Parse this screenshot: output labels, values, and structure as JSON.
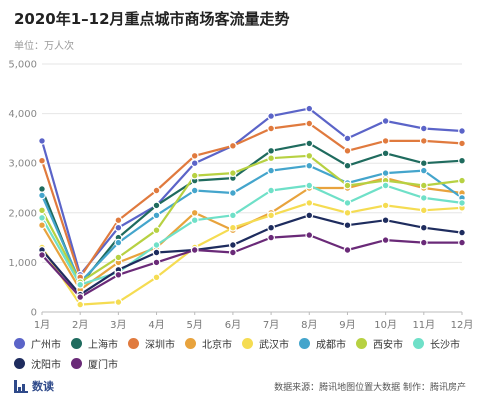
{
  "title": "2020年1–12月重点城市商场客流量走势",
  "unit_label": "单位：万人次",
  "footer": {
    "logo_text": "数读",
    "source": "数据来源：腾讯地图位置大数据  制作：腾讯房产"
  },
  "chart_data": {
    "type": "line",
    "categories": [
      "1月",
      "2月",
      "3月",
      "4月",
      "5月",
      "6月",
      "7月",
      "8月",
      "9月",
      "10月",
      "11月",
      "12月"
    ],
    "ylim": [
      0,
      5000
    ],
    "yticks": [
      "0",
      "1,000",
      "2,000",
      "3,000",
      "4,000",
      "5,000"
    ],
    "grid": true,
    "legend_placement": "bottom",
    "series": [
      {
        "name": "广州市",
        "color": "#5b64c8",
        "values": [
          3450,
          750,
          1700,
          2150,
          3000,
          3350,
          3950,
          4100,
          3500,
          3850,
          3700,
          3650
        ]
      },
      {
        "name": "上海市",
        "color": "#1f6b5e",
        "values": [
          2480,
          550,
          1500,
          2150,
          2650,
          2700,
          3250,
          3400,
          2950,
          3200,
          3000,
          3050
        ]
      },
      {
        "name": "深圳市",
        "color": "#e07a3e",
        "values": [
          3050,
          700,
          1850,
          2450,
          3150,
          3350,
          3700,
          3800,
          3250,
          3450,
          3450,
          3400
        ]
      },
      {
        "name": "北京市",
        "color": "#e8a33d",
        "values": [
          1750,
          450,
          1000,
          1300,
          2000,
          1650,
          2000,
          2500,
          2500,
          2700,
          2500,
          2400
        ]
      },
      {
        "name": "武汉市",
        "color": "#f5dc52",
        "values": [
          1300,
          150,
          200,
          700,
          1300,
          1700,
          1950,
          2200,
          2000,
          2150,
          2050,
          2100
        ]
      },
      {
        "name": "成都市",
        "color": "#44a5cc",
        "values": [
          2350,
          600,
          1400,
          1950,
          2450,
          2400,
          2850,
          2950,
          2600,
          2800,
          2850,
          2300
        ]
      },
      {
        "name": "西安市",
        "color": "#b7d142",
        "values": [
          2050,
          600,
          1100,
          1650,
          2750,
          2800,
          3100,
          3150,
          2550,
          2650,
          2550,
          2650
        ]
      },
      {
        "name": "长沙市",
        "color": "#6fe0c8",
        "values": [
          1900,
          550,
          800,
          1350,
          1850,
          1950,
          2450,
          2550,
          2200,
          2550,
          2300,
          2200
        ]
      },
      {
        "name": "沈阳市",
        "color": "#1e2c5e",
        "values": [
          1250,
          350,
          850,
          1200,
          1250,
          1350,
          1700,
          1950,
          1750,
          1850,
          1700,
          1600
        ]
      },
      {
        "name": "厦门市",
        "color": "#6a2a78",
        "values": [
          1150,
          300,
          750,
          1000,
          1250,
          1200,
          1500,
          1550,
          1250,
          1450,
          1400,
          1400
        ]
      }
    ]
  }
}
